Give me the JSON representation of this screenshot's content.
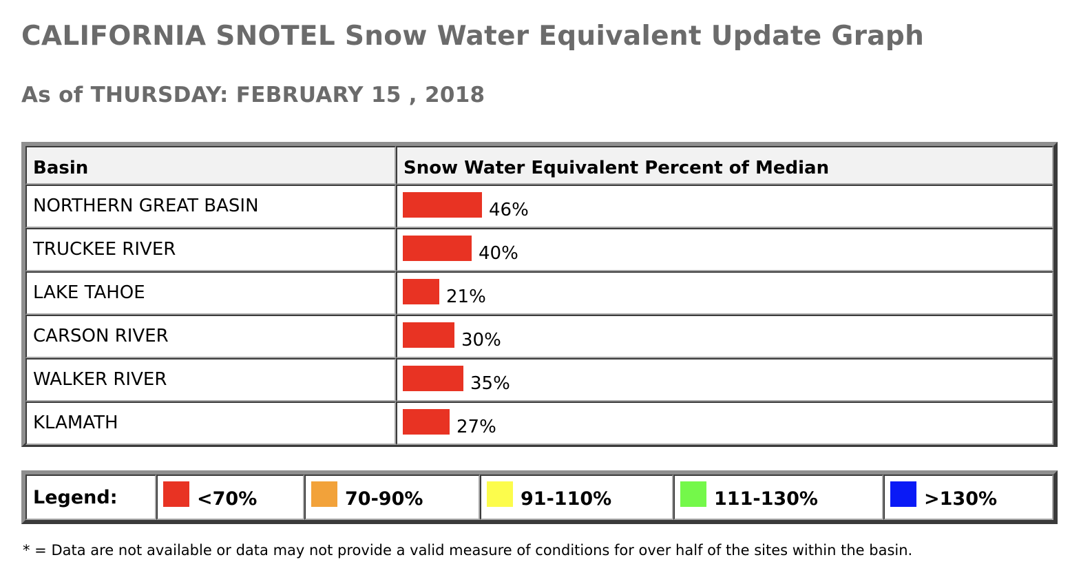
{
  "title": "CALIFORNIA SNOTEL Snow Water Equivalent Update Graph",
  "subtitle": "As of THURSDAY: FEBRUARY 15 , 2018",
  "table": {
    "header_basin": "Basin",
    "header_swe": "Snow Water Equivalent Percent of Median"
  },
  "legend": {
    "label": "Legend:",
    "items": [
      {
        "text": "<70%",
        "color": "#e83323"
      },
      {
        "text": "70-90%",
        "color": "#f2a23a"
      },
      {
        "text": "91-110%",
        "color": "#fcfc4c"
      },
      {
        "text": "111-130%",
        "color": "#74f84a"
      },
      {
        "text": ">130%",
        "color": "#0a1af6"
      }
    ]
  },
  "footnote": "* = Data are not available or data may not provide a valid measure of conditions for over half of the sites within the basin.",
  "chart_data": {
    "type": "bar",
    "orientation": "horizontal",
    "title": "CALIFORNIA SNOTEL Snow Water Equivalent Update Graph",
    "categories": [
      "NORTHERN GREAT BASIN",
      "TRUCKEE RIVER",
      "LAKE TAHOE",
      "CARSON RIVER",
      "WALKER RIVER",
      "KLAMATH"
    ],
    "values": [
      46,
      40,
      21,
      30,
      35,
      27
    ],
    "value_labels": [
      "46%",
      "40%",
      "21%",
      "30%",
      "35%",
      "27%"
    ],
    "bar_color": "#e83323",
    "grid": false
  }
}
